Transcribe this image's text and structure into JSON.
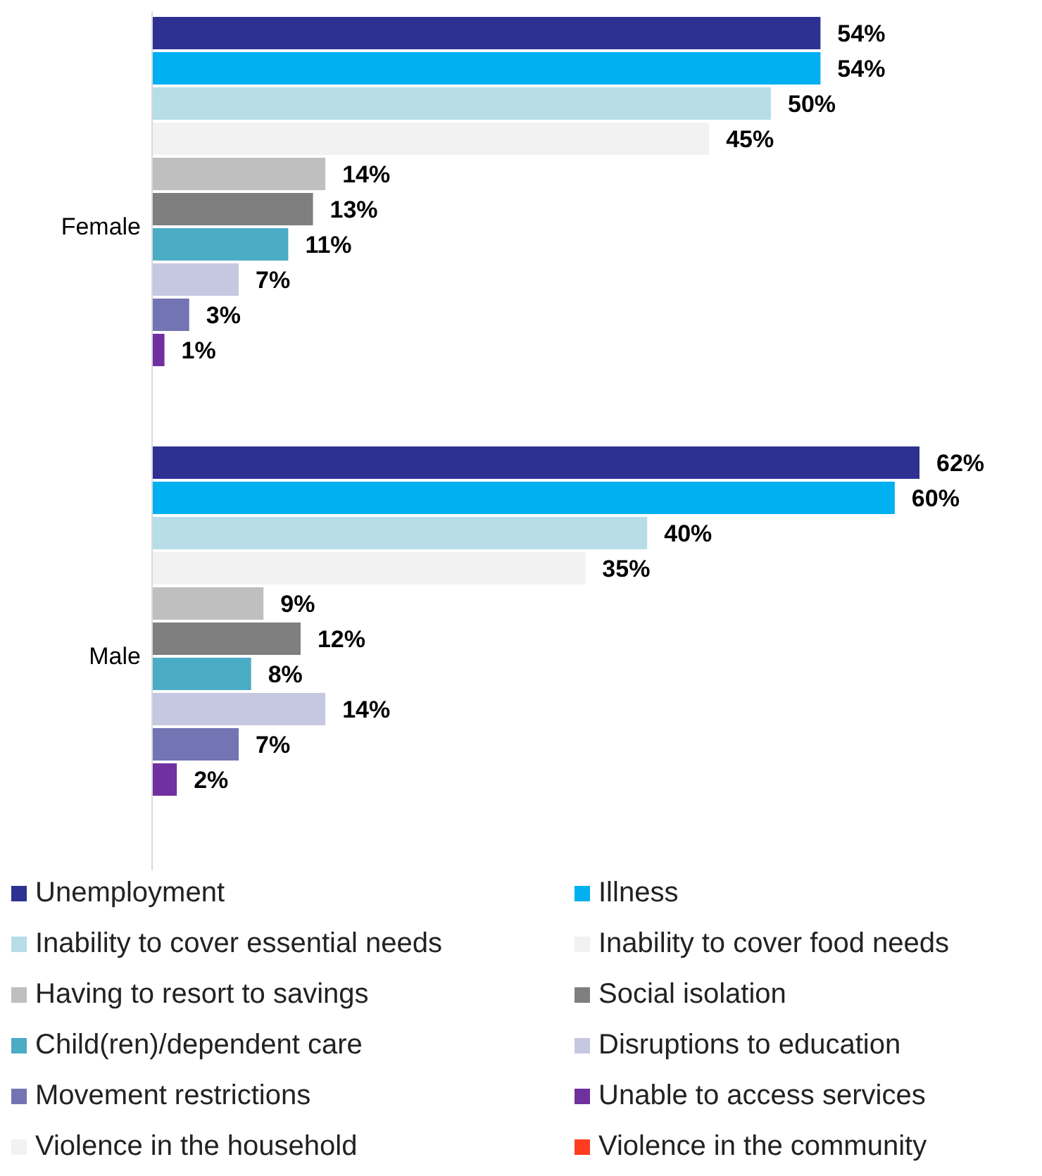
{
  "chart_data": {
    "type": "bar",
    "orientation": "horizontal",
    "categories": [
      "Female",
      "Male"
    ],
    "legend": "bottom",
    "series": [
      {
        "name": "Unemployment",
        "color": "#2e3192",
        "values": [
          54,
          62
        ],
        "value_labels": [
          "54%",
          "62%"
        ]
      },
      {
        "name": "Illness",
        "color": "#00b0f0",
        "values": [
          54,
          60
        ],
        "value_labels": [
          "54%",
          "60%"
        ]
      },
      {
        "name": "Inability to cover essential needs",
        "color": "#b7dde8",
        "values": [
          50,
          40
        ],
        "value_labels": [
          "50%",
          "40%"
        ]
      },
      {
        "name": "Inability to cover food needs",
        "color": "#f2f2f2",
        "values": [
          45,
          35
        ],
        "value_labels": [
          "45%",
          "35%"
        ]
      },
      {
        "name": "Having to resort to savings",
        "color": "#bfbfbf",
        "values": [
          14,
          9
        ],
        "value_labels": [
          "14%",
          "9%"
        ]
      },
      {
        "name": "Social isolation",
        "color": "#7f7f7f",
        "values": [
          13,
          12
        ],
        "value_labels": [
          "13%",
          "12%"
        ]
      },
      {
        "name": "Child(ren)/dependent care",
        "color": "#4bacc6",
        "values": [
          11,
          8
        ],
        "value_labels": [
          "11%",
          "8%"
        ]
      },
      {
        "name": "Disruptions to education",
        "color": "#c6c8e2",
        "values": [
          7,
          14
        ],
        "value_labels": [
          "7%",
          "14%"
        ]
      },
      {
        "name": "Movement restrictions",
        "color": "#7274b4",
        "values": [
          3,
          7
        ],
        "value_labels": [
          "3%",
          "7%"
        ]
      },
      {
        "name": "Unable to access services",
        "color": "#7030a0",
        "values": [
          1,
          2
        ],
        "value_labels": [
          "1%",
          "2%"
        ]
      },
      {
        "name": "Violence in the household",
        "color": "#f2f2f2",
        "values": [
          null,
          null
        ],
        "value_labels": [
          null,
          null
        ]
      },
      {
        "name": "Violence in the community",
        "color": "#ff3c1f",
        "values": [
          null,
          null
        ],
        "value_labels": [
          null,
          null
        ]
      }
    ]
  }
}
